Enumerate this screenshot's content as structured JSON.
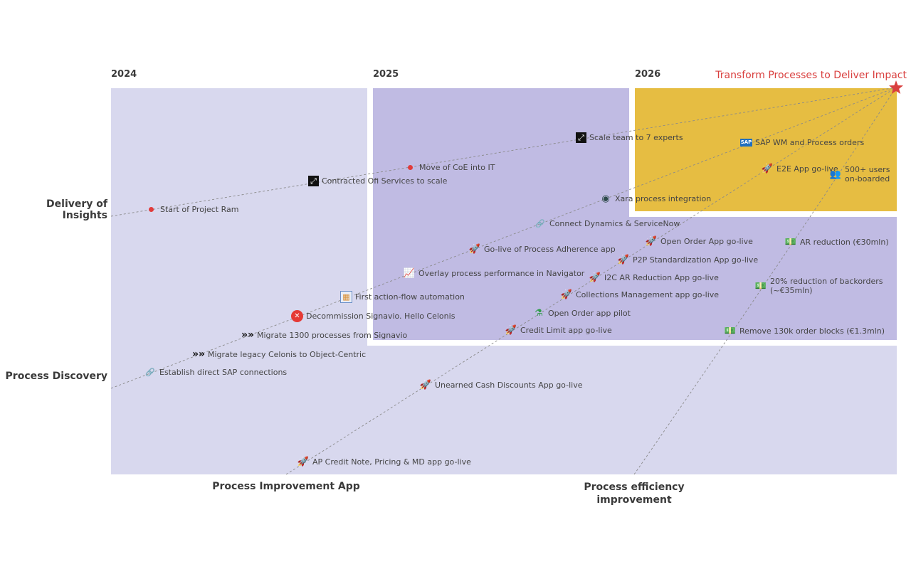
{
  "years": [
    "2024",
    "2025",
    "2026"
  ],
  "goal": "Transform Processes to Deliver Impact",
  "lanes": {
    "delivery": "Delivery of Insights",
    "discovery": "Process Discovery",
    "improvement_app": "Process Improvement App",
    "efficiency": "Process efficiency\nimprovement"
  },
  "colors": {
    "lavender": "#d8d8ee",
    "purple": "#c0bbe3",
    "gold": "#e6bd42",
    "line": "#8a8a8a",
    "goal": "#d9403f"
  },
  "milestones": [
    {
      "icon": "red-dot-icon",
      "glyph": "",
      "label": "Start of Project Ram"
    },
    {
      "icon": "expand-icon",
      "glyph": "⤢",
      "label": "Contracted Ofi Services to scale"
    },
    {
      "icon": "red-dot-icon",
      "glyph": "",
      "label": "Move of CoE into IT"
    },
    {
      "icon": "expand-icon",
      "glyph": "⤢",
      "label": "Scale team to 7 experts"
    },
    {
      "icon": "sap-logo-icon",
      "glyph": "SAP",
      "label": "SAP WM and Process orders"
    },
    {
      "icon": "rocket-icon",
      "glyph": "🚀",
      "label": "E2E App go-live"
    },
    {
      "icon": "users-icon",
      "glyph": "👥",
      "label": "500+ users\non-boarded"
    },
    {
      "icon": "robot-icon",
      "glyph": "◉",
      "label": "Xara process integration"
    },
    {
      "icon": "link-icon",
      "glyph": "🔗",
      "label": "Connect Dynamics & ServiceNow"
    },
    {
      "icon": "rocket-icon",
      "glyph": "🚀",
      "label": "Go-live of Process Adherence app"
    },
    {
      "icon": "chart-up-icon",
      "glyph": "📈",
      "label": "Overlay process performance in Navigator"
    },
    {
      "icon": "flow-window-icon",
      "glyph": "▦",
      "label": "First action-flow automation"
    },
    {
      "icon": "cancel-icon",
      "glyph": "✕",
      "label": "Decommission Signavio. Hello Celonis"
    },
    {
      "icon": "chevrons-icon",
      "glyph": "»»",
      "label": "Migrate 1300 processes from Signavio"
    },
    {
      "icon": "chevrons-icon",
      "glyph": "»»",
      "label": "Migrate legacy Celonis to Object-Centric"
    },
    {
      "icon": "link-icon",
      "glyph": "🔗",
      "label": "Establish direct SAP connections"
    },
    {
      "icon": "rocket-icon",
      "glyph": "🚀",
      "label": "Open Order App go-live"
    },
    {
      "icon": "rocket-icon",
      "glyph": "🚀",
      "label": "P2P Standardization App go-live"
    },
    {
      "icon": "rocket-icon",
      "glyph": "🚀",
      "label": "I2C AR Reduction App go-live"
    },
    {
      "icon": "rocket-icon",
      "glyph": "🚀",
      "label": "Collections Management app go-live"
    },
    {
      "icon": "flask-icon",
      "glyph": "⚗",
      "label": "Open Order app pilot"
    },
    {
      "icon": "rocket-icon",
      "glyph": "🚀",
      "label": "Credit Limit app go-live"
    },
    {
      "icon": "rocket-icon",
      "glyph": "🚀",
      "label": "Unearned Cash Discounts App go-live"
    },
    {
      "icon": "rocket-icon",
      "glyph": "🚀",
      "label": "AP Credit Note, Pricing & MD app go-live"
    },
    {
      "icon": "money-icon",
      "glyph": "💵",
      "label": "AR reduction (€30mln)"
    },
    {
      "icon": "money-icon",
      "glyph": "💵",
      "label": "20% reduction of backorders\n(~€35mln)"
    },
    {
      "icon": "money-icon",
      "glyph": "💵",
      "label": "Remove 130k order blocks (€1.3mln)"
    }
  ]
}
